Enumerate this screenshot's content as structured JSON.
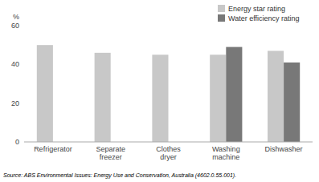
{
  "chart_data": {
    "type": "bar",
    "categories": [
      "Refrigerator",
      "Separate\nfreezer",
      "Clothes\ndryer",
      "Washing\nmachine",
      "Dishwasher"
    ],
    "series": [
      {
        "name": "Energy star rating",
        "color": "#c8c8c8",
        "values": [
          50,
          46,
          45,
          45,
          47
        ]
      },
      {
        "name": "Water efficiency rating",
        "color": "#787878",
        "values": [
          0,
          0,
          0,
          49,
          41
        ]
      }
    ],
    "ylabel": "%",
    "ylim": [
      0,
      60
    ],
    "yticks": [
      0,
      20,
      40,
      60
    ],
    "grid": false,
    "legend": "upper right",
    "annotations": [
      "Source: ABS Environmental Issues: Energy Use and Conservation, Australia (4602.0.55.001)."
    ]
  }
}
